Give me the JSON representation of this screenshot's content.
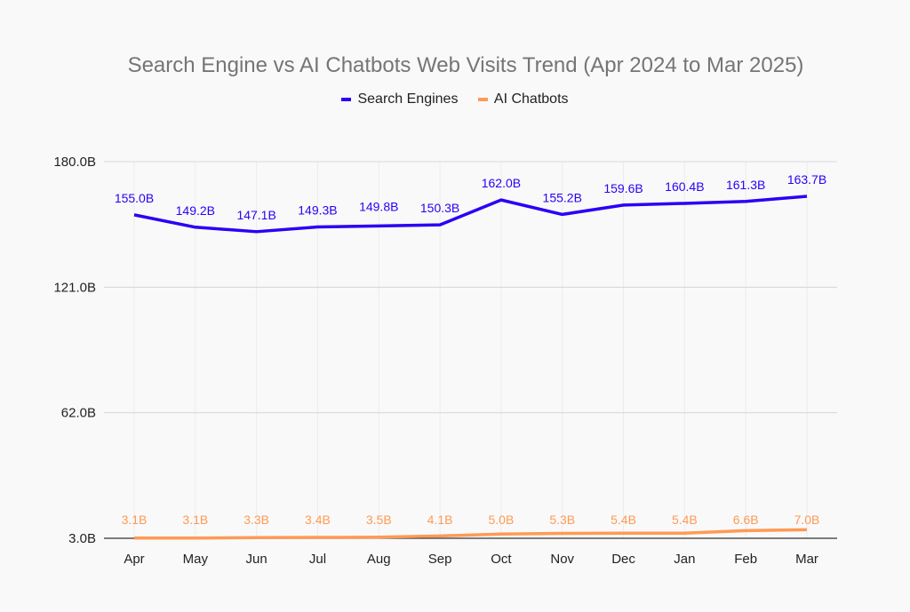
{
  "chart_data": {
    "type": "line",
    "title": "Search Engine vs AI Chatbots Web Visits Trend (Apr 2024 to Mar 2025)",
    "xlabel": "",
    "ylabel": "",
    "categories": [
      "Apr",
      "May",
      "Jun",
      "Jul",
      "Aug",
      "Sep",
      "Oct",
      "Nov",
      "Dec",
      "Jan",
      "Feb",
      "Mar"
    ],
    "ylim": [
      3.0,
      180.0
    ],
    "yticks": [
      "3.0B",
      "62.0B",
      "121.0B",
      "180.0B"
    ],
    "ytick_values": [
      3.0,
      62.0,
      121.0,
      180.0
    ],
    "grid": "horizontal, faint vertical",
    "legend_position": "top",
    "series": [
      {
        "name": "Search Engines",
        "color": "#2a00f5",
        "values": [
          155.0,
          149.2,
          147.1,
          149.3,
          149.8,
          150.3,
          162.0,
          155.2,
          159.6,
          160.4,
          161.3,
          163.7
        ],
        "labels": [
          "155.0B",
          "149.2B",
          "147.1B",
          "149.3B",
          "149.8B",
          "150.3B",
          "162.0B",
          "155.2B",
          "159.6B",
          "160.4B",
          "161.3B",
          "163.7B"
        ]
      },
      {
        "name": "AI Chatbots",
        "color": "#ff9a55",
        "values": [
          3.1,
          3.1,
          3.3,
          3.4,
          3.5,
          4.1,
          5.0,
          5.3,
          5.4,
          5.4,
          6.6,
          7.0
        ],
        "labels": [
          "3.1B",
          "3.1B",
          "3.3B",
          "3.4B",
          "3.5B",
          "4.1B",
          "5.0B",
          "5.3B",
          "5.4B",
          "5.4B",
          "6.6B",
          "7.0B"
        ]
      }
    ]
  }
}
